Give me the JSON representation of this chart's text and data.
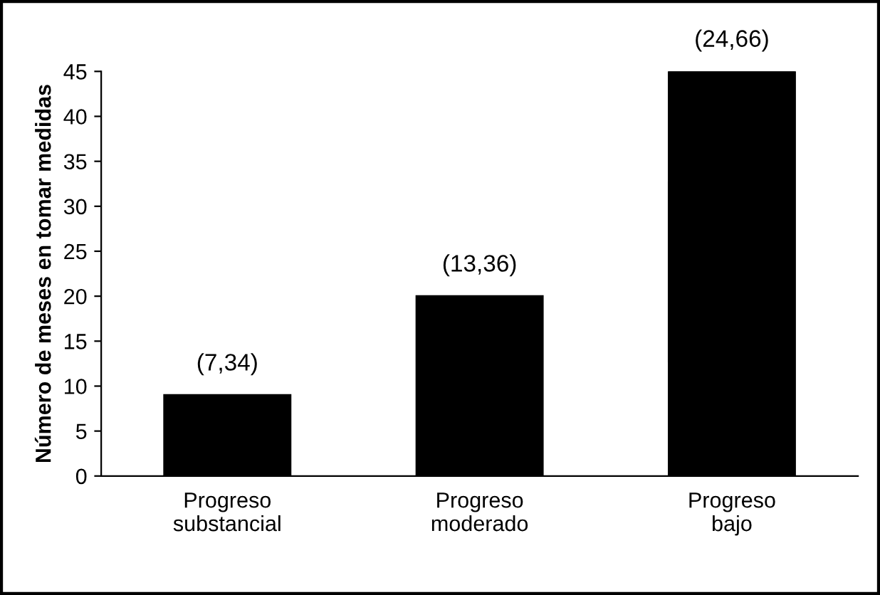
{
  "chart_data": {
    "type": "bar",
    "ylabel": "Número de meses en tomar medidas",
    "categories": [
      "Progreso\nsubstancial",
      "Progreso\nmoderado",
      "Progreso\nbajo"
    ],
    "values": [
      9,
      20,
      45
    ],
    "annotations": [
      {
        "text": "(7,34)",
        "x": "Progreso\nsubstancial",
        "y": 9
      },
      {
        "text": "(13,36)",
        "x": "Progreso\nmoderado",
        "y": 20
      },
      {
        "text": "(24,66)",
        "x": "Progreso\nbajo",
        "y": 45
      }
    ],
    "color": "#000000",
    "ylim": [
      0,
      45
    ],
    "yticks": [
      0,
      5,
      10,
      15,
      20,
      25,
      30,
      35,
      40,
      45
    ],
    "grid": false,
    "legend": false
  }
}
